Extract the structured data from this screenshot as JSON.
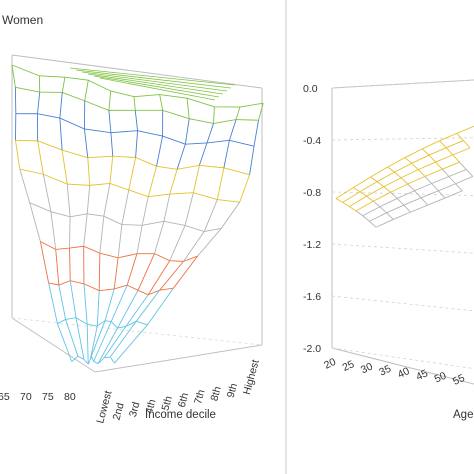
{
  "chart_data": [
    {
      "type": "surface",
      "title": "Women",
      "x_axis": {
        "label": "Income decile",
        "ticks": [
          "Lowest",
          "2nd",
          "3rd",
          "4th",
          "5th",
          "6th",
          "7th",
          "8th",
          "9th",
          "Highest"
        ]
      },
      "age_axis": {
        "label": "",
        "ticks_visible": [
          "65",
          "70",
          "75",
          "80"
        ]
      },
      "color_bands": [
        {
          "name": "upper",
          "color": "#7fc241"
        },
        {
          "name": "high",
          "color": "#4a7fd4"
        },
        {
          "name": "middle",
          "color": "#e6c12c"
        },
        {
          "name": "low",
          "color": "#f07142"
        },
        {
          "name": "lowest",
          "color": "#62c3e6"
        },
        {
          "name": "neutral",
          "color": "#b4b4b4"
        }
      ],
      "grid": true
    },
    {
      "type": "surface",
      "title": "",
      "z_axis": {
        "ticks": [
          "0.0",
          "-0.4",
          "-0.8",
          "-1.2",
          "-1.6",
          "-2.0"
        ],
        "zlim": [
          -2.0,
          0.0
        ]
      },
      "age_axis": {
        "label": "Age",
        "ticks_visible": [
          "20",
          "25",
          "30",
          "35",
          "40",
          "45",
          "50",
          "55"
        ]
      },
      "color_bands": [
        {
          "name": "middle",
          "color": "#e6c12c"
        },
        {
          "name": "neutral",
          "color": "#b4b4b4"
        }
      ],
      "grid": true
    }
  ]
}
